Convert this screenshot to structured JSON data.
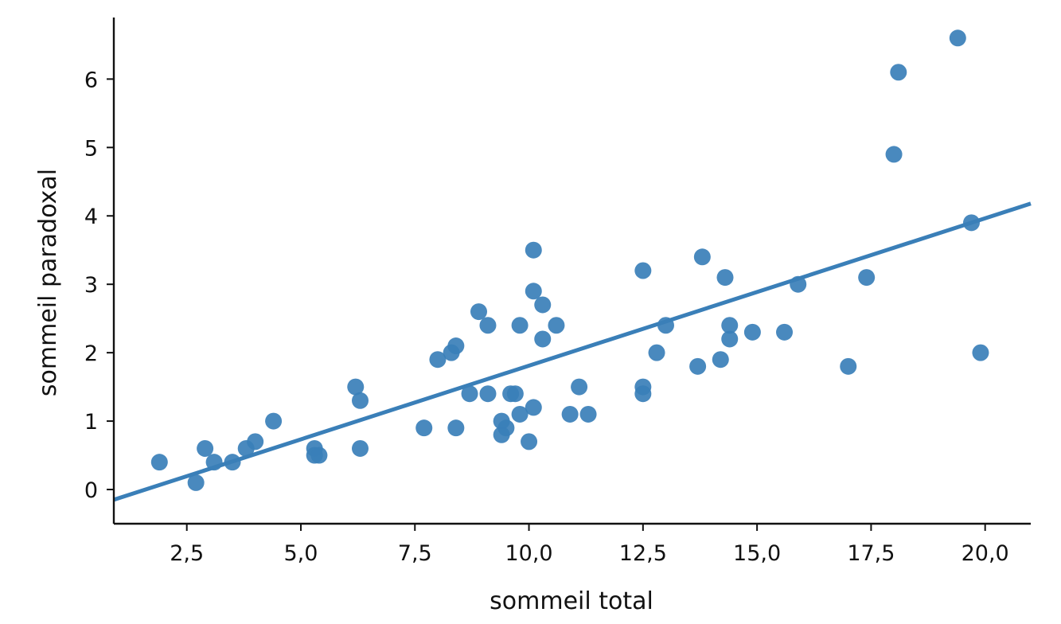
{
  "chart_data": {
    "type": "scatter",
    "title": "",
    "xlabel": "sommeil total",
    "ylabel": "sommeil paradoxal",
    "xlim": [
      0.9,
      21.0
    ],
    "ylim": [
      -0.5,
      6.9
    ],
    "xticks": [
      2.5,
      5.0,
      7.5,
      10.0,
      12.5,
      15.0,
      17.5,
      20.0
    ],
    "xtick_labels": [
      "2,5",
      "5,0",
      "7,5",
      "10,0",
      "12,5",
      "15,0",
      "17,5",
      "20,0"
    ],
    "yticks": [
      0,
      1,
      2,
      3,
      4,
      5,
      6
    ],
    "ytick_labels": [
      "0",
      "1",
      "2",
      "3",
      "4",
      "5",
      "6"
    ],
    "grid": false,
    "color": "#3a7fb8",
    "points": [
      [
        1.9,
        0.4
      ],
      [
        2.7,
        0.1
      ],
      [
        2.9,
        0.6
      ],
      [
        3.1,
        0.4
      ],
      [
        3.5,
        0.4
      ],
      [
        3.8,
        0.6
      ],
      [
        4.0,
        0.7
      ],
      [
        4.4,
        1.0
      ],
      [
        5.3,
        0.6
      ],
      [
        5.3,
        0.5
      ],
      [
        5.4,
        0.5
      ],
      [
        6.2,
        1.5
      ],
      [
        6.3,
        1.3
      ],
      [
        6.3,
        0.6
      ],
      [
        7.7,
        0.9
      ],
      [
        8.0,
        1.9
      ],
      [
        8.3,
        2.0
      ],
      [
        8.4,
        2.1
      ],
      [
        8.4,
        0.9
      ],
      [
        8.7,
        1.4
      ],
      [
        8.9,
        2.6
      ],
      [
        9.1,
        2.4
      ],
      [
        9.1,
        1.4
      ],
      [
        9.4,
        1.0
      ],
      [
        9.4,
        0.8
      ],
      [
        9.5,
        0.9
      ],
      [
        9.6,
        1.4
      ],
      [
        9.7,
        1.4
      ],
      [
        9.8,
        2.4
      ],
      [
        9.8,
        1.1
      ],
      [
        10.0,
        0.7
      ],
      [
        10.1,
        3.5
      ],
      [
        10.1,
        2.9
      ],
      [
        10.1,
        1.2
      ],
      [
        10.3,
        2.7
      ],
      [
        10.3,
        2.2
      ],
      [
        10.6,
        2.4
      ],
      [
        10.9,
        1.1
      ],
      [
        11.1,
        1.5
      ],
      [
        11.3,
        1.1
      ],
      [
        12.5,
        3.2
      ],
      [
        12.5,
        1.5
      ],
      [
        12.5,
        1.4
      ],
      [
        12.8,
        2.0
      ],
      [
        13.0,
        2.4
      ],
      [
        13.7,
        1.8
      ],
      [
        13.8,
        3.4
      ],
      [
        14.2,
        1.9
      ],
      [
        14.3,
        3.1
      ],
      [
        14.4,
        2.4
      ],
      [
        14.4,
        2.2
      ],
      [
        14.9,
        2.3
      ],
      [
        15.6,
        2.3
      ],
      [
        15.9,
        3.0
      ],
      [
        17.0,
        1.8
      ],
      [
        17.4,
        3.1
      ],
      [
        18.0,
        4.9
      ],
      [
        18.1,
        6.1
      ],
      [
        19.4,
        6.6
      ],
      [
        19.7,
        3.9
      ],
      [
        19.9,
        2.0
      ]
    ],
    "regression_line": {
      "x": [
        0.9,
        21.0
      ],
      "y": [
        -0.15,
        4.18
      ]
    }
  }
}
